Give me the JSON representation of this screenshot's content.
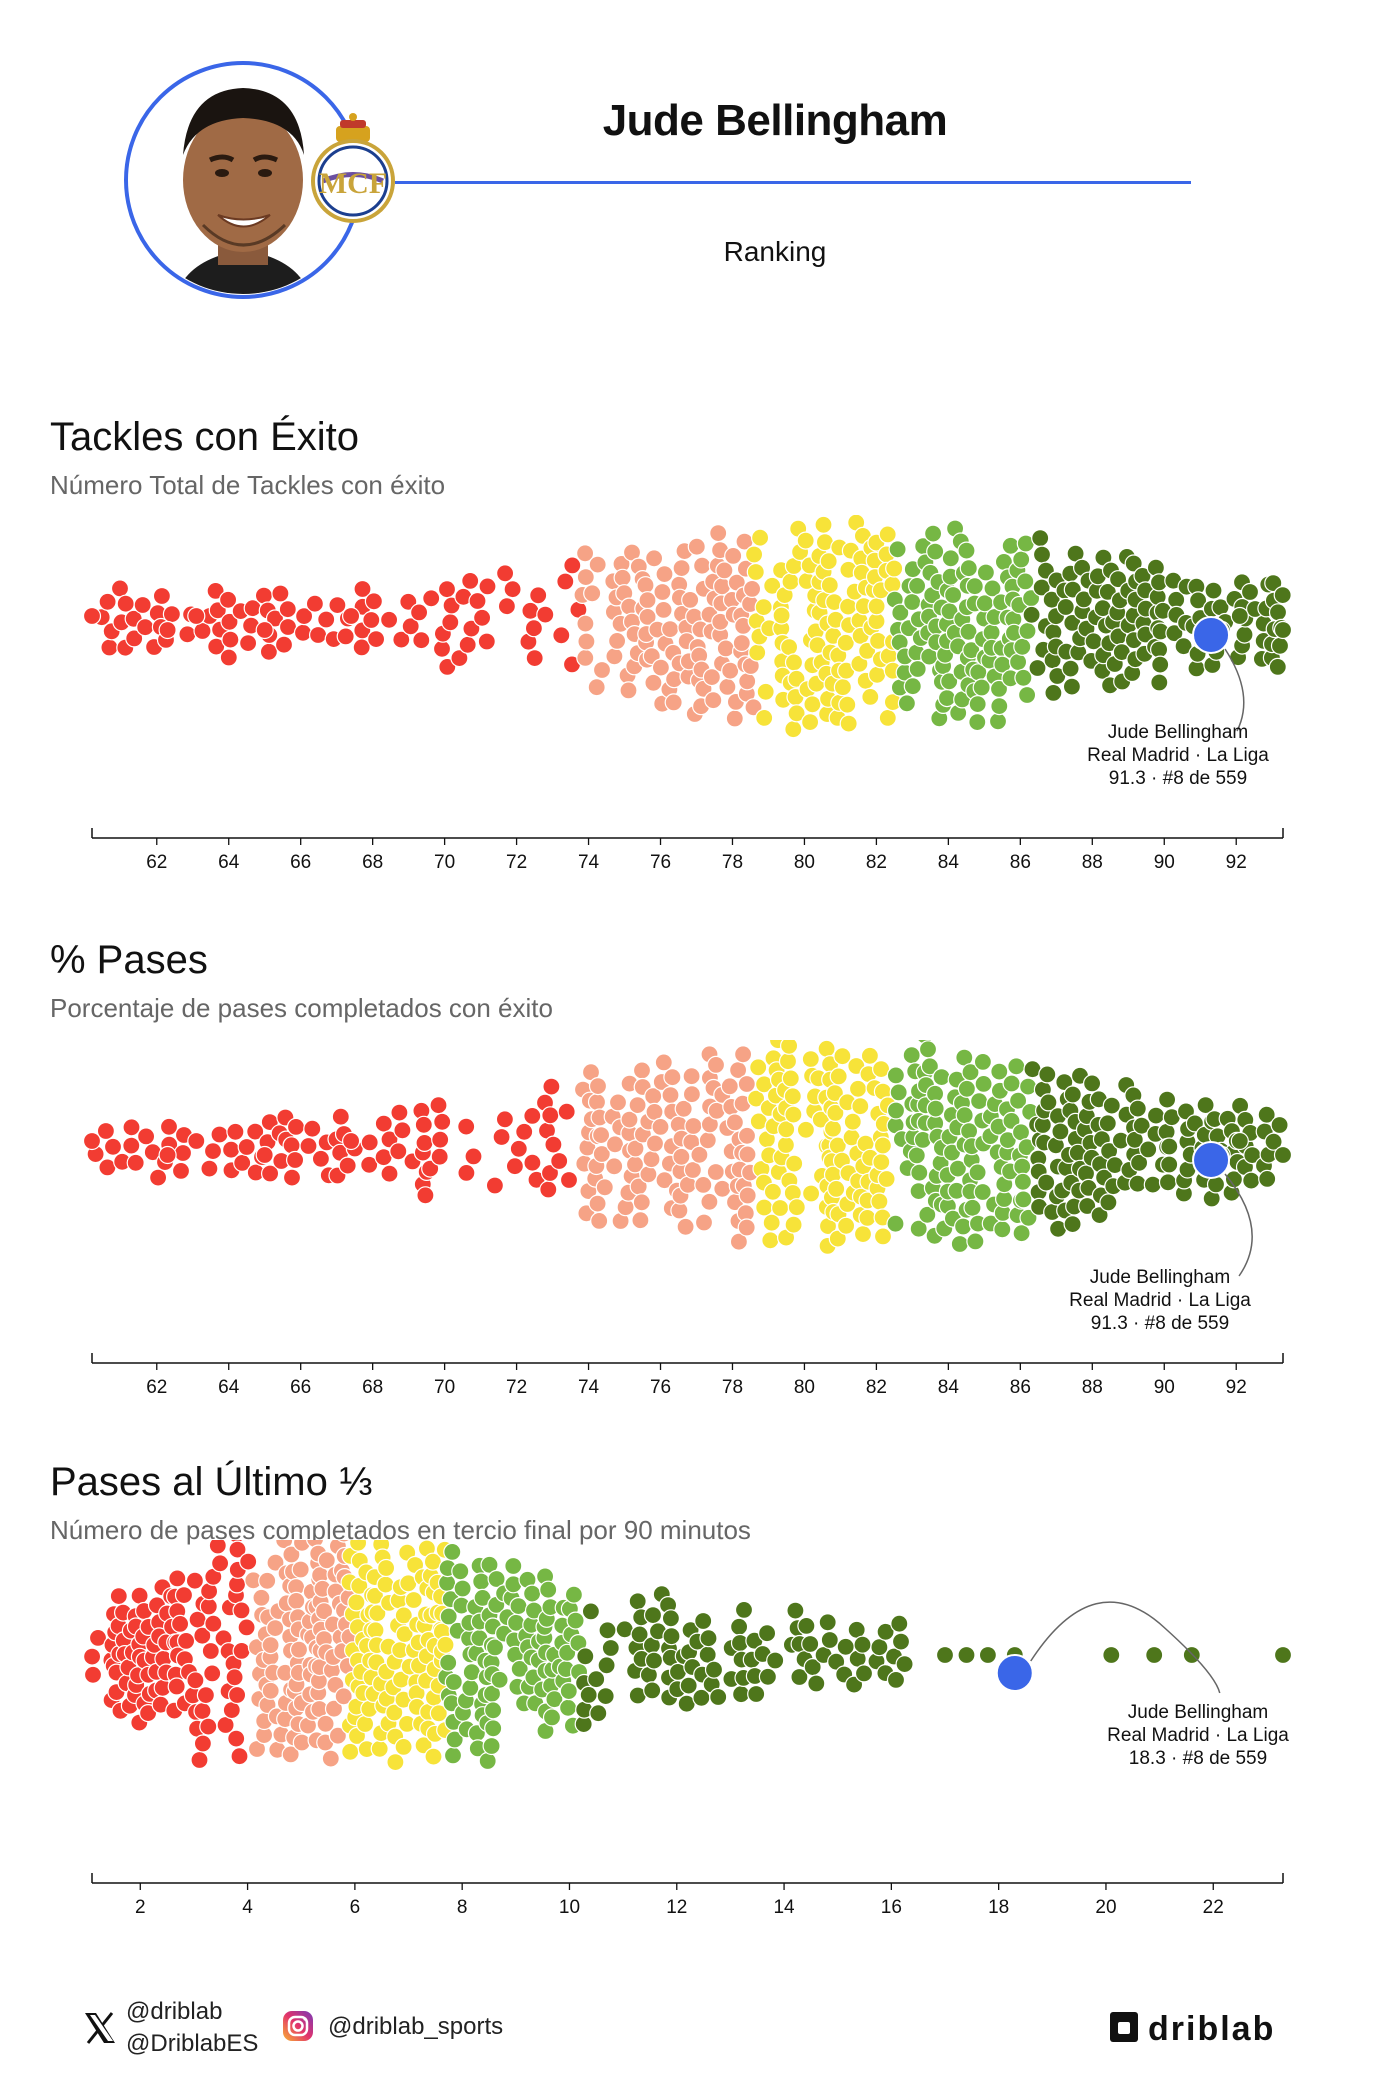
{
  "header": {
    "player_name": "Jude Bellingham",
    "subtitle": "Ranking",
    "accent_color": "#3a66e8",
    "avatar_icon": "player-photo",
    "club_crest_icon": "real-madrid-crest-icon"
  },
  "chart_data": [
    {
      "type": "scatter",
      "subtype": "beeswarm",
      "title": "Tackles con Éxito",
      "subtitle": "Número Total de Tackles con éxito",
      "xlim": [
        60.2,
        93.3
      ],
      "ticks": [
        62,
        64,
        66,
        68,
        70,
        72,
        74,
        76,
        78,
        80,
        82,
        84,
        86,
        88,
        90,
        92
      ],
      "tick_labels": [
        "62",
        "64",
        "66",
        "68",
        "70",
        "72",
        "74",
        "76",
        "78",
        "80",
        "82",
        "84",
        "86",
        "88",
        "90",
        "92"
      ],
      "n_players": 559,
      "bands": [
        {
          "range": [
            60.2,
            73.8
          ],
          "color": "#f23c32",
          "count": 95
        },
        {
          "range": [
            73.8,
            78.6
          ],
          "color": "#f6a386",
          "count": 112
        },
        {
          "range": [
            78.6,
            82.5
          ],
          "color": "#f7e339",
          "count": 112
        },
        {
          "range": [
            82.5,
            86.3
          ],
          "color": "#76b744",
          "count": 112
        },
        {
          "range": [
            86.3,
            93.3
          ],
          "color": "#4e761b",
          "count": 128
        }
      ],
      "outliers": [
        60.2,
        62.3,
        63.1,
        65.0,
        67.4,
        91.6,
        92.1,
        93.3
      ],
      "highlight": {
        "value": 91.3,
        "color": "#3a66e8",
        "label_line1": "Jude Bellingham",
        "label_line2": "Real Madrid · La Liga",
        "label_line3": "91.3 · #8 de 559"
      }
    },
    {
      "type": "scatter",
      "subtype": "beeswarm",
      "title": "% Pases",
      "subtitle": "Porcentaje de pases completados con éxito",
      "xlim": [
        60.2,
        93.3
      ],
      "ticks": [
        62,
        64,
        66,
        68,
        70,
        72,
        74,
        76,
        78,
        80,
        82,
        84,
        86,
        88,
        90,
        92
      ],
      "tick_labels": [
        "62",
        "64",
        "66",
        "68",
        "70",
        "72",
        "74",
        "76",
        "78",
        "80",
        "82",
        "84",
        "86",
        "88",
        "90",
        "92"
      ],
      "n_players": 559,
      "bands": [
        {
          "range": [
            60.2,
            73.8
          ],
          "color": "#f23c32",
          "count": 95
        },
        {
          "range": [
            73.8,
            78.6
          ],
          "color": "#f6a386",
          "count": 112
        },
        {
          "range": [
            78.6,
            82.5
          ],
          "color": "#f7e339",
          "count": 112
        },
        {
          "range": [
            82.5,
            86.3
          ],
          "color": "#76b744",
          "count": 112
        },
        {
          "range": [
            86.3,
            93.3
          ],
          "color": "#4e761b",
          "count": 128
        }
      ],
      "outliers": [
        60.2,
        62.3,
        63.1,
        65.0,
        67.4,
        91.6,
        92.1,
        93.3
      ],
      "highlight": {
        "value": 91.3,
        "color": "#3a66e8",
        "label_line1": "Jude Bellingham",
        "label_line2": "Real Madrid · La Liga",
        "label_line3": "91.3 · #8 de 559"
      }
    },
    {
      "type": "scatter",
      "subtype": "beeswarm",
      "title": "Pases al Último ⅓",
      "subtitle": "Número de pases completados en tercio final por 90 minutos",
      "xlim": [
        1.1,
        23.3
      ],
      "ticks": [
        2,
        4,
        6,
        8,
        10,
        12,
        14,
        16,
        18,
        20,
        22
      ],
      "tick_labels": [
        "2",
        "4",
        "6",
        "8",
        "10",
        "12",
        "14",
        "16",
        "18",
        "20",
        "22"
      ],
      "n_players": 559,
      "bands": [
        {
          "range": [
            1.1,
            4.1
          ],
          "color": "#f23c32",
          "count": 112
        },
        {
          "range": [
            4.1,
            5.9
          ],
          "color": "#f6a386",
          "count": 112
        },
        {
          "range": [
            5.9,
            7.7
          ],
          "color": "#f7e339",
          "count": 112
        },
        {
          "range": [
            7.7,
            10.2
          ],
          "color": "#76b744",
          "count": 112
        },
        {
          "range": [
            10.2,
            16.3
          ],
          "color": "#4e761b",
          "count": 97
        }
      ],
      "outliers": [
        17.0,
        17.4,
        17.8,
        18.3,
        20.1,
        20.9,
        21.6,
        23.3
      ],
      "highlight": {
        "value": 18.3,
        "color": "#3a66e8",
        "label_line1": "Jude Bellingham",
        "label_line2": "Real Madrid · La Liga",
        "label_line3": "18.3 · #8 de 559"
      }
    }
  ],
  "footer": {
    "x_icon": "x-logo-icon",
    "x_handle_1": "@driblab",
    "x_handle_2": "@DriblabES",
    "instagram_icon": "instagram-icon",
    "instagram_handle": "@driblab_sports",
    "brand": "driblab"
  }
}
